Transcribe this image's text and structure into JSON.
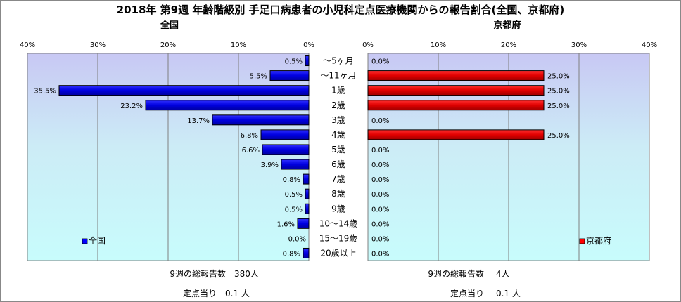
{
  "chart_data": {
    "type": "bar",
    "title": "2018年 第9週 年齢階級別 手足口病患者の小児科定点医療機関からの報告割合(全国、京都府)",
    "categories": [
      "～5ヶ月",
      "～11ヶ月",
      "1歳",
      "2歳",
      "3歳",
      "4歳",
      "5歳",
      "6歳",
      "7歳",
      "8歳",
      "9歳",
      "10～14歳",
      "15～19歳",
      "20歳以上"
    ],
    "xlim": [
      0,
      40
    ],
    "xticks": [
      "0%",
      "10%",
      "20%",
      "30%",
      "40%"
    ],
    "grid": true,
    "panels": [
      {
        "subtitle": "全国",
        "legend": "全国",
        "legend_position": "bottom-left",
        "color": "#0000ff",
        "values": [
          0.5,
          5.5,
          35.5,
          23.2,
          13.7,
          6.8,
          6.6,
          3.9,
          0.8,
          0.5,
          0.5,
          1.6,
          0.0,
          0.8
        ],
        "labels": [
          "0.5%",
          "5.5%",
          "35.5%",
          "23.2%",
          "13.7%",
          "6.8%",
          "6.6%",
          "3.9%",
          "0.8%",
          "0.5%",
          "0.5%",
          "1.6%",
          "0.0%",
          "0.8%"
        ],
        "footer": {
          "total_label": "9週の総報告数",
          "total_value": "380人",
          "per_label": "定点当り",
          "per_value": "0.1 人"
        }
      },
      {
        "subtitle": "京都府",
        "legend": "京都府",
        "legend_position": "bottom-right",
        "color": "#ff0000",
        "values": [
          0.0,
          25.0,
          25.0,
          25.0,
          0.0,
          25.0,
          0.0,
          0.0,
          0.0,
          0.0,
          0.0,
          0.0,
          0.0,
          0.0
        ],
        "labels": [
          "0.0%",
          "25.0%",
          "25.0%",
          "25.0%",
          "0.0%",
          "25.0%",
          "0.0%",
          "0.0%",
          "0.0%",
          "0.0%",
          "0.0%",
          "0.0%",
          "0.0%",
          "0.0%"
        ],
        "footer": {
          "total_label": "9週の総報告数",
          "total_value": "4人",
          "per_label": "定点当り",
          "per_value": "0.1 人"
        }
      }
    ]
  }
}
